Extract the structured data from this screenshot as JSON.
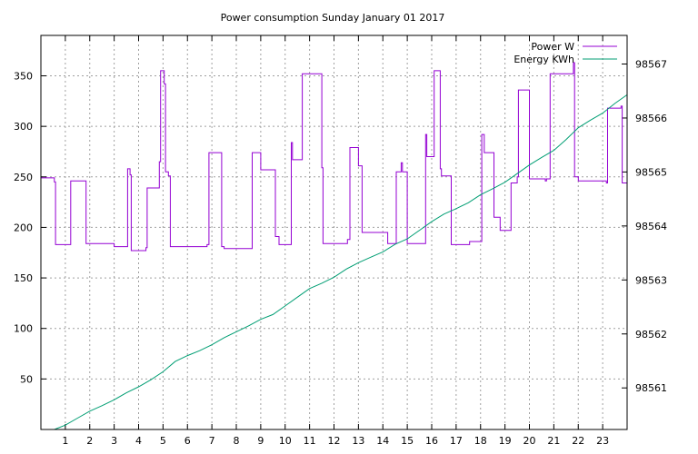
{
  "chart_data": {
    "type": "line",
    "title": "Power consumption Sunday January 01 2017",
    "xlabel": "",
    "ylabel": "",
    "y2label": "",
    "xlim": [
      0,
      24
    ],
    "ylim": [
      0,
      390
    ],
    "y2lim": [
      98560.23,
      98567.53
    ],
    "x_ticks": [
      1,
      2,
      3,
      4,
      5,
      6,
      7,
      8,
      9,
      10,
      11,
      12,
      13,
      14,
      15,
      16,
      17,
      18,
      19,
      20,
      21,
      22,
      23
    ],
    "y_ticks": [
      50,
      100,
      150,
      200,
      250,
      300,
      350
    ],
    "y2_ticks": [
      98561,
      98562,
      98563,
      98564,
      98565,
      98566,
      98567
    ],
    "grid": true,
    "legend_position": "top-right",
    "series": [
      {
        "name": "Power W",
        "axis": "left",
        "color": "#9400d3",
        "step": true,
        "x": [
          0,
          0.55,
          0.6,
          1.15,
          1.22,
          1.82,
          1.85,
          2.9,
          3.0,
          3.55,
          3.65,
          3.7,
          4.25,
          4.3,
          4.35,
          4.8,
          4.85,
          4.9,
          5.05,
          5.1,
          5.22,
          5.3,
          5.35,
          6.8,
          6.88,
          7.3,
          7.4,
          7.5,
          8.55,
          8.65,
          9.0,
          9.6,
          9.68,
          9.75,
          10.25,
          10.3,
          10.6,
          10.7,
          11.5,
          11.55,
          12.45,
          12.55,
          12.65,
          13.0,
          13.15,
          14.15,
          14.2,
          14.55,
          14.6,
          14.75,
          14.8,
          15.0,
          15.6,
          15.75,
          15.8,
          16.1,
          16.35,
          16.4,
          16.8,
          17.5,
          17.55,
          18.05,
          18.15,
          18.55,
          18.8,
          19.2,
          19.25,
          19.5,
          19.55,
          19.95,
          20.0,
          20.65,
          20.7,
          20.85,
          20.95,
          21.15,
          21.8,
          21.85,
          21.9,
          22.0,
          22.3,
          22.3,
          22.35,
          23.15,
          23.2,
          23.7,
          23.75,
          23.8,
          23.9
        ],
        "values": [
          249,
          245,
          183,
          183,
          246,
          246,
          184,
          184,
          181,
          258,
          252,
          177,
          177,
          180,
          239,
          239,
          265,
          355,
          342,
          255,
          251,
          181,
          181,
          183,
          274,
          274,
          181,
          179,
          179,
          274,
          257,
          191,
          191,
          183,
          284,
          267,
          267,
          352,
          259,
          184,
          184,
          188,
          279,
          261,
          195,
          195,
          184,
          255,
          255,
          264,
          255,
          184,
          184,
          292,
          270,
          355,
          258,
          251,
          183,
          183,
          186,
          292,
          274,
          210,
          197,
          197,
          244,
          250,
          336,
          336,
          248,
          246,
          248,
          352,
          352,
          352,
          363,
          250,
          250,
          246,
          246,
          246,
          246,
          244,
          318,
          318,
          320,
          244,
          244
        ]
      },
      {
        "name": "Energy KWh",
        "axis": "right",
        "color": "#009e73",
        "step": false,
        "x": [
          0.55,
          1.0,
          1.5,
          2.0,
          2.5,
          3.0,
          3.5,
          4.0,
          4.5,
          5.0,
          5.5,
          6.0,
          6.5,
          7.0,
          7.5,
          8.0,
          8.5,
          9.0,
          9.5,
          10.0,
          10.5,
          11.0,
          11.5,
          12.0,
          12.5,
          13.0,
          13.5,
          14.0,
          14.5,
          15.0,
          15.5,
          16.0,
          16.5,
          17.0,
          17.5,
          18.0,
          18.5,
          19.0,
          19.5,
          20.0,
          20.5,
          21.0,
          21.5,
          22.0,
          22.5,
          23.0,
          23.5,
          24.0
        ],
        "values": [
          98560.23,
          98560.31,
          98560.44,
          98560.57,
          98560.67,
          98560.78,
          98560.91,
          98561.02,
          98561.15,
          98561.3,
          98561.49,
          98561.6,
          98561.69,
          98561.8,
          98561.93,
          98562.04,
          98562.15,
          98562.27,
          98562.36,
          98562.52,
          98562.68,
          98562.84,
          98562.94,
          98563.05,
          98563.2,
          98563.32,
          98563.42,
          98563.52,
          98563.66,
          98563.76,
          98563.92,
          98564.08,
          98564.22,
          98564.32,
          98564.43,
          98564.58,
          98564.69,
          98564.81,
          98564.97,
          98565.13,
          98565.27,
          98565.4,
          98565.6,
          98565.82,
          98565.96,
          98566.09,
          98566.27,
          98566.43
        ]
      }
    ]
  }
}
